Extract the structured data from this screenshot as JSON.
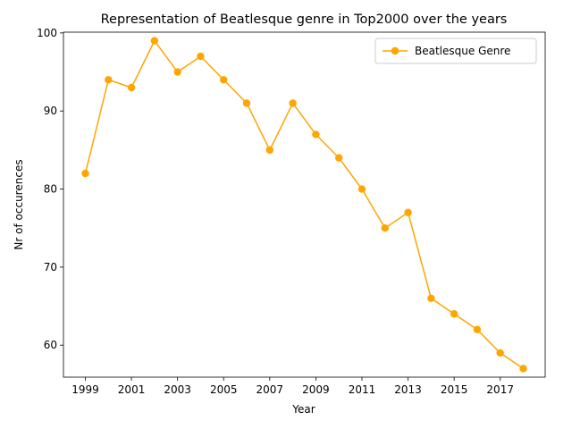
{
  "chart_data": {
    "type": "line",
    "title": "Representation of Beatlesque genre in Top2000 over the years",
    "xlabel": "Year",
    "ylabel": "Nr of occurences",
    "x": [
      1999,
      2000,
      2001,
      2002,
      2003,
      2004,
      2005,
      2006,
      2007,
      2008,
      2009,
      2010,
      2011,
      2012,
      2013,
      2014,
      2015,
      2016,
      2017,
      2018
    ],
    "series": [
      {
        "name": "Beatlesque Genre",
        "color": "#ffa500",
        "values": [
          82,
          94,
          93,
          99,
          95,
          97,
          94,
          91,
          85,
          91,
          87,
          84,
          80,
          75,
          77,
          66,
          64,
          62,
          59,
          57
        ]
      }
    ],
    "xticks": [
      1999,
      2001,
      2003,
      2005,
      2007,
      2009,
      2011,
      2013,
      2015,
      2017
    ],
    "yticks": [
      60,
      70,
      80,
      90,
      100
    ],
    "xlim": [
      1998.05,
      2018.95
    ],
    "ylim": [
      55.9,
      100.1
    ],
    "grid": false,
    "legend_position": "top-right"
  }
}
